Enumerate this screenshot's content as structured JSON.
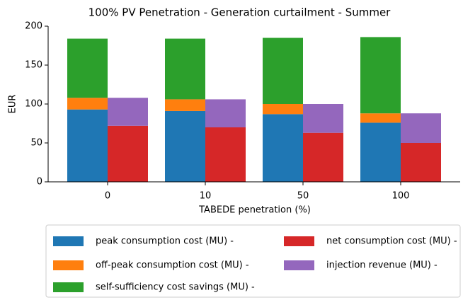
{
  "chart_data": {
    "type": "grouped_stacked_bar",
    "title": "100% PV Penetration - Generation curtailment - Summer",
    "x_label": "TABEDE penetration (%)",
    "y_label": "EUR",
    "categories": [
      "0",
      "10",
      "50",
      "100"
    ],
    "stacks": [
      [
        {
          "name": "peak consumption cost (MU) -",
          "color": "#1f77b4",
          "values": [
            93,
            91,
            87,
            76
          ]
        },
        {
          "name": "off-peak consumption cost (MU) -",
          "color": "#ff7f0e",
          "values": [
            15,
            15,
            13,
            12
          ]
        },
        {
          "name": "self-sufficiency cost savings (MU) -",
          "color": "#2ca02c",
          "values": [
            76,
            78,
            85,
            98
          ]
        }
      ],
      [
        {
          "name": "net consumption cost (MU) -",
          "color": "#d62728",
          "values": [
            72,
            70,
            63,
            50
          ]
        },
        {
          "name": "injection revenue (MU) -",
          "color": "#9467bd",
          "values": [
            36,
            36,
            37,
            38
          ]
        }
      ]
    ],
    "ylim": [
      0,
      200
    ],
    "yticks": [
      0,
      50,
      100,
      150,
      200
    ],
    "grid": false
  }
}
